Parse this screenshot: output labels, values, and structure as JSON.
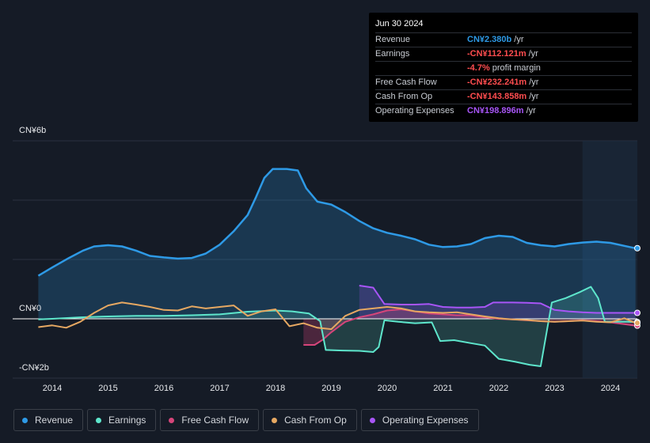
{
  "tooltip": {
    "date": "Jun 30 2024",
    "rows": [
      {
        "label": "Revenue",
        "value": "CN¥2.380b",
        "unit": "/yr",
        "color": "#2e9ae6"
      },
      {
        "label": "Earnings",
        "value": "-CN¥112.121m",
        "unit": "/yr",
        "color": "#ff4d4f"
      },
      {
        "label": "",
        "value": "-4.7%",
        "unit": "profit margin",
        "color": "#ff4d4f"
      },
      {
        "label": "Free Cash Flow",
        "value": "-CN¥232.241m",
        "unit": "/yr",
        "color": "#ff4d4f"
      },
      {
        "label": "Cash From Op",
        "value": "-CN¥143.858m",
        "unit": "/yr",
        "color": "#ff4d4f"
      },
      {
        "label": "Operating Expenses",
        "value": "CN¥198.896m",
        "unit": "/yr",
        "color": "#a855f7"
      }
    ]
  },
  "legend": [
    {
      "label": "Revenue",
      "color": "#2e9ae6"
    },
    {
      "label": "Earnings",
      "color": "#5ee6cc"
    },
    {
      "label": "Free Cash Flow",
      "color": "#d6457a"
    },
    {
      "label": "Cash From Op",
      "color": "#e6a862"
    },
    {
      "label": "Operating Expenses",
      "color": "#a855f7"
    }
  ],
  "chart_data": {
    "type": "line",
    "ylabel_top": "CN¥6b",
    "ylabel_zero": "CN¥0",
    "ylabel_bottom": "-CN¥2b",
    "ylim": [
      -2,
      6
    ],
    "xlim": [
      2013.3,
      2024.5
    ],
    "x_ticks": [
      {
        "value": 2014,
        "label": "2014"
      },
      {
        "value": 2015,
        "label": "2015"
      },
      {
        "value": 2016,
        "label": "2016"
      },
      {
        "value": 2017,
        "label": "2017"
      },
      {
        "value": 2018,
        "label": "2018"
      },
      {
        "value": 2019,
        "label": "2019"
      },
      {
        "value": 2020,
        "label": "2020"
      },
      {
        "value": 2021,
        "label": "2021"
      },
      {
        "value": 2022,
        "label": "2022"
      },
      {
        "value": 2023,
        "label": "2023"
      },
      {
        "value": 2024,
        "label": "2024"
      }
    ],
    "highlight_from": 2023.5,
    "series": [
      {
        "name": "Revenue",
        "color": "#2e9ae6",
        "fill": true,
        "points": [
          [
            2013.75,
            1.45
          ],
          [
            2014.0,
            1.73
          ],
          [
            2014.3,
            2.05
          ],
          [
            2014.55,
            2.3
          ],
          [
            2014.75,
            2.44
          ],
          [
            2015.0,
            2.48
          ],
          [
            2015.25,
            2.44
          ],
          [
            2015.5,
            2.3
          ],
          [
            2015.75,
            2.12
          ],
          [
            2016.0,
            2.07
          ],
          [
            2016.25,
            2.03
          ],
          [
            2016.5,
            2.05
          ],
          [
            2016.75,
            2.2
          ],
          [
            2017.0,
            2.5
          ],
          [
            2017.25,
            2.95
          ],
          [
            2017.5,
            3.5
          ],
          [
            2017.65,
            4.1
          ],
          [
            2017.8,
            4.75
          ],
          [
            2017.95,
            5.05
          ],
          [
            2018.2,
            5.05
          ],
          [
            2018.4,
            5.0
          ],
          [
            2018.55,
            4.4
          ],
          [
            2018.75,
            3.95
          ],
          [
            2019.0,
            3.85
          ],
          [
            2019.25,
            3.6
          ],
          [
            2019.5,
            3.3
          ],
          [
            2019.75,
            3.05
          ],
          [
            2020.0,
            2.9
          ],
          [
            2020.25,
            2.8
          ],
          [
            2020.5,
            2.68
          ],
          [
            2020.75,
            2.5
          ],
          [
            2021.0,
            2.42
          ],
          [
            2021.25,
            2.44
          ],
          [
            2021.5,
            2.52
          ],
          [
            2021.75,
            2.72
          ],
          [
            2022.0,
            2.8
          ],
          [
            2022.25,
            2.76
          ],
          [
            2022.5,
            2.56
          ],
          [
            2022.75,
            2.48
          ],
          [
            2023.0,
            2.44
          ],
          [
            2023.25,
            2.52
          ],
          [
            2023.5,
            2.57
          ],
          [
            2023.75,
            2.6
          ],
          [
            2024.0,
            2.56
          ],
          [
            2024.25,
            2.46
          ],
          [
            2024.45,
            2.38
          ]
        ]
      },
      {
        "name": "Earnings",
        "color": "#5ee6cc",
        "fill": true,
        "points": [
          [
            2013.75,
            -0.02
          ],
          [
            2014.0,
            0.0
          ],
          [
            2014.5,
            0.05
          ],
          [
            2015.0,
            0.08
          ],
          [
            2015.5,
            0.1
          ],
          [
            2016.0,
            0.1
          ],
          [
            2016.5,
            0.12
          ],
          [
            2017.0,
            0.15
          ],
          [
            2017.5,
            0.24
          ],
          [
            2018.0,
            0.28
          ],
          [
            2018.3,
            0.25
          ],
          [
            2018.6,
            0.18
          ],
          [
            2018.8,
            -0.08
          ],
          [
            2018.9,
            -1.05
          ],
          [
            2019.2,
            -1.07
          ],
          [
            2019.5,
            -1.08
          ],
          [
            2019.75,
            -1.12
          ],
          [
            2019.85,
            -0.95
          ],
          [
            2019.95,
            -0.05
          ],
          [
            2020.2,
            -0.1
          ],
          [
            2020.5,
            -0.15
          ],
          [
            2020.8,
            -0.12
          ],
          [
            2020.95,
            -0.75
          ],
          [
            2021.2,
            -0.72
          ],
          [
            2021.5,
            -0.82
          ],
          [
            2021.75,
            -0.9
          ],
          [
            2022.0,
            -1.35
          ],
          [
            2022.3,
            -1.45
          ],
          [
            2022.55,
            -1.55
          ],
          [
            2022.75,
            -1.6
          ],
          [
            2022.95,
            0.55
          ],
          [
            2023.2,
            0.7
          ],
          [
            2023.45,
            0.9
          ],
          [
            2023.65,
            1.08
          ],
          [
            2023.78,
            0.7
          ],
          [
            2023.9,
            -0.1
          ],
          [
            2024.1,
            -0.1
          ],
          [
            2024.3,
            -0.1
          ],
          [
            2024.45,
            -0.11
          ]
        ]
      },
      {
        "name": "Free Cash Flow",
        "color": "#d6457a",
        "fill": true,
        "points": [
          [
            2018.5,
            -0.88
          ],
          [
            2018.7,
            -0.88
          ],
          [
            2018.85,
            -0.7
          ],
          [
            2019.0,
            -0.45
          ],
          [
            2019.25,
            -0.1
          ],
          [
            2019.5,
            0.05
          ],
          [
            2019.75,
            0.15
          ],
          [
            2020.0,
            0.28
          ],
          [
            2020.25,
            0.32
          ],
          [
            2020.5,
            0.25
          ],
          [
            2020.75,
            0.18
          ],
          [
            2021.0,
            0.15
          ],
          [
            2021.25,
            0.12
          ],
          [
            2021.5,
            0.12
          ],
          [
            2021.75,
            0.05
          ],
          [
            2022.0,
            0.0
          ],
          [
            2022.25,
            -0.02
          ],
          [
            2022.5,
            -0.05
          ],
          [
            2022.75,
            -0.08
          ],
          [
            2023.0,
            -0.1
          ],
          [
            2023.25,
            -0.08
          ],
          [
            2023.5,
            -0.05
          ],
          [
            2023.75,
            -0.08
          ],
          [
            2024.0,
            -0.12
          ],
          [
            2024.25,
            -0.18
          ],
          [
            2024.45,
            -0.23
          ]
        ]
      },
      {
        "name": "Cash From Op",
        "color": "#e6a862",
        "fill": false,
        "points": [
          [
            2013.75,
            -0.28
          ],
          [
            2014.0,
            -0.22
          ],
          [
            2014.25,
            -0.3
          ],
          [
            2014.5,
            -0.1
          ],
          [
            2014.75,
            0.2
          ],
          [
            2015.0,
            0.45
          ],
          [
            2015.25,
            0.55
          ],
          [
            2015.5,
            0.48
          ],
          [
            2015.75,
            0.4
          ],
          [
            2016.0,
            0.3
          ],
          [
            2016.25,
            0.28
          ],
          [
            2016.5,
            0.42
          ],
          [
            2016.75,
            0.35
          ],
          [
            2017.0,
            0.4
          ],
          [
            2017.25,
            0.45
          ],
          [
            2017.5,
            0.1
          ],
          [
            2017.75,
            0.25
          ],
          [
            2018.0,
            0.32
          ],
          [
            2018.25,
            -0.25
          ],
          [
            2018.5,
            -0.15
          ],
          [
            2018.75,
            -0.3
          ],
          [
            2019.0,
            -0.35
          ],
          [
            2019.25,
            0.1
          ],
          [
            2019.5,
            0.3
          ],
          [
            2019.75,
            0.35
          ],
          [
            2020.0,
            0.4
          ],
          [
            2020.25,
            0.35
          ],
          [
            2020.5,
            0.25
          ],
          [
            2020.75,
            0.22
          ],
          [
            2021.0,
            0.2
          ],
          [
            2021.25,
            0.22
          ],
          [
            2021.5,
            0.15
          ],
          [
            2021.75,
            0.08
          ],
          [
            2022.0,
            0.02
          ],
          [
            2022.25,
            -0.02
          ],
          [
            2022.5,
            -0.04
          ],
          [
            2022.75,
            -0.08
          ],
          [
            2023.0,
            -0.1
          ],
          [
            2023.25,
            -0.08
          ],
          [
            2023.5,
            -0.06
          ],
          [
            2023.75,
            -0.1
          ],
          [
            2024.0,
            -0.12
          ],
          [
            2024.25,
            0.02
          ],
          [
            2024.45,
            -0.14
          ]
        ]
      },
      {
        "name": "Operating Expenses",
        "color": "#a855f7",
        "fill": true,
        "fill_from": 2019.5,
        "points": [
          [
            2019.5,
            1.12
          ],
          [
            2019.75,
            1.05
          ],
          [
            2019.95,
            0.5
          ],
          [
            2020.25,
            0.48
          ],
          [
            2020.5,
            0.48
          ],
          [
            2020.75,
            0.5
          ],
          [
            2021.0,
            0.4
          ],
          [
            2021.25,
            0.38
          ],
          [
            2021.5,
            0.38
          ],
          [
            2021.75,
            0.4
          ],
          [
            2021.9,
            0.55
          ],
          [
            2022.25,
            0.55
          ],
          [
            2022.5,
            0.54
          ],
          [
            2022.75,
            0.52
          ],
          [
            2023.0,
            0.3
          ],
          [
            2023.25,
            0.25
          ],
          [
            2023.5,
            0.22
          ],
          [
            2023.75,
            0.2
          ],
          [
            2024.0,
            0.2
          ],
          [
            2024.25,
            0.2
          ],
          [
            2024.45,
            0.2
          ]
        ]
      }
    ]
  }
}
